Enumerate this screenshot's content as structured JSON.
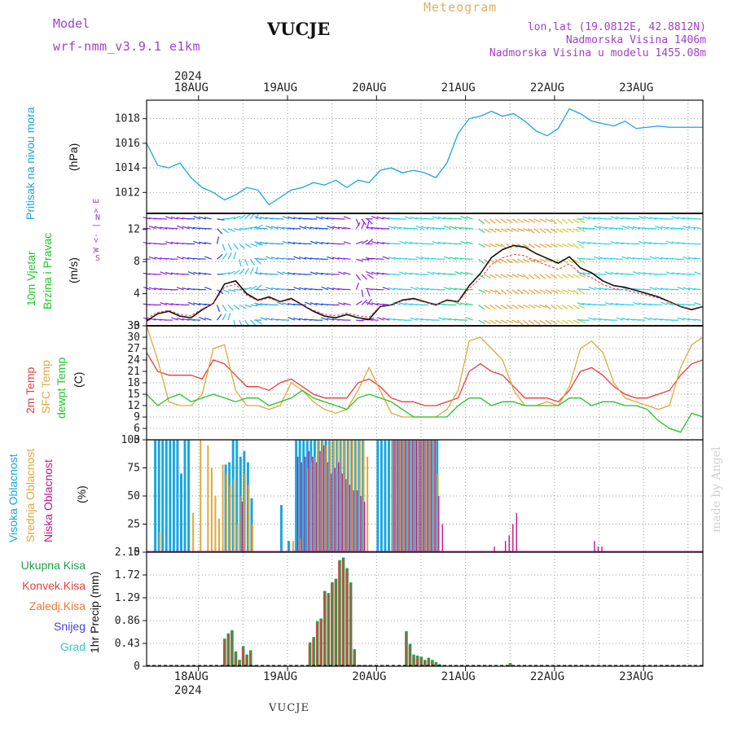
{
  "header": {
    "model_label": "Model",
    "model_name": "wrf-nmm_v3.9.1 e1km",
    "station": "VUCJE",
    "meteogram_label": "Meteogram",
    "lonlat": "lon,lat (19.0812E, 42.8812N)",
    "altitude": "Nadmorska Visina 1406m",
    "model_altitude": "Nadmorska Visina u modelu 1455.08m",
    "watermark": "made by Angel",
    "footer_station": "VUCJE"
  },
  "colors": {
    "pressure": "#1aa6e0",
    "wind_speed": "#22c52b",
    "temp2m": "#e83c3c",
    "sfc_temp": "#e0a83a",
    "dewpt": "#22c52b",
    "high_cloud": "#1aa6e0",
    "mid_cloud": "#e0a83a",
    "low_cloud": "#c8148c",
    "total_precip": "#22a04a",
    "conv_precip": "#e83c3c",
    "frz_precip": "#f07830",
    "snow": "#4040e0",
    "graupel": "#30c8c8",
    "header_purple": "#a040c8",
    "meteogram_color": "#e0b060"
  },
  "time_axis": {
    "year": "2024",
    "days": [
      "18AUG",
      "19AUG",
      "20AUG",
      "21AUG",
      "22AUG",
      "23AUG"
    ],
    "start_hour": 0,
    "end_hour": 150,
    "day_start_hours": [
      14,
      38,
      62,
      86,
      110,
      134
    ]
  },
  "chart_data": [
    {
      "type": "line",
      "panel": "pressure",
      "ylabel_main": "Pritisak na nivou mora",
      "ylabel_unit": "(hPa)",
      "ylim": [
        1010.3,
        1019.5
      ],
      "yticks": [
        "1012",
        "1014",
        "1016",
        "1018"
      ],
      "grid": true,
      "x": [
        0,
        3,
        6,
        9,
        12,
        15,
        18,
        21,
        24,
        27,
        30,
        33,
        36,
        39,
        42,
        45,
        48,
        51,
        54,
        57,
        60,
        63,
        66,
        69,
        72,
        75,
        78,
        81,
        84,
        87,
        90,
        93,
        96,
        99,
        102,
        105,
        108,
        111,
        114,
        117,
        120,
        123,
        126,
        129,
        132,
        135,
        138,
        141,
        144,
        147,
        150
      ],
      "values": [
        1016.0,
        1014.2,
        1014.0,
        1014.4,
        1013.2,
        1012.4,
        1012.0,
        1011.4,
        1011.8,
        1012.4,
        1012.2,
        1011.0,
        1011.6,
        1012.2,
        1012.4,
        1012.8,
        1012.6,
        1013.0,
        1012.4,
        1013.0,
        1012.8,
        1013.8,
        1014.0,
        1013.6,
        1013.8,
        1013.6,
        1013.2,
        1014.4,
        1016.8,
        1018.0,
        1018.2,
        1018.6,
        1018.2,
        1018.4,
        1017.8,
        1017.0,
        1016.6,
        1017.2,
        1018.8,
        1018.4,
        1017.8,
        1017.6,
        1017.4,
        1017.8,
        1017.2,
        1017.3,
        1017.4,
        1017.3,
        1017.3,
        1017.3,
        1017.3
      ]
    },
    {
      "type": "line",
      "panel": "wind",
      "ylabel_main": "10m Vjetar",
      "ylabel_sub": "Brzina i Pravac",
      "ylabel_unit": "(m/s)",
      "compass": "W <- | -> E",
      "compass_n": "N",
      "compass_s": "S",
      "ylim": [
        0,
        14
      ],
      "yticks": [
        "0",
        "4",
        "8",
        "12"
      ],
      "grid": true,
      "x": [
        0,
        3,
        6,
        9,
        12,
        15,
        18,
        21,
        24,
        27,
        30,
        33,
        36,
        39,
        42,
        45,
        48,
        51,
        54,
        57,
        60,
        63,
        66,
        69,
        72,
        75,
        78,
        81,
        84,
        87,
        90,
        93,
        96,
        99,
        102,
        105,
        108,
        111,
        114,
        117,
        120,
        123,
        126,
        129,
        132,
        135,
        138,
        141,
        144,
        147,
        150
      ],
      "values": [
        0.6,
        1.5,
        1.8,
        1.2,
        1.0,
        2.0,
        2.8,
        5.2,
        5.6,
        4.0,
        3.2,
        3.6,
        3.0,
        3.4,
        2.6,
        1.8,
        1.2,
        1.0,
        1.4,
        1.0,
        0.8,
        2.4,
        2.6,
        3.2,
        3.4,
        3.0,
        2.6,
        3.2,
        3.0,
        5.0,
        6.5,
        8.5,
        9.5,
        10.0,
        9.8,
        9.0,
        8.4,
        7.8,
        8.6,
        7.2,
        6.6,
        5.6,
        5.0,
        4.8,
        4.4,
        4.0,
        3.6,
        3.0,
        2.4,
        2.0,
        2.4
      ]
    },
    {
      "type": "line",
      "panel": "temperature",
      "ylabel_main": "2m Temp",
      "ylabel_sub": "SFC Temp",
      "ylabel_sub2": "dewpt Temp",
      "ylabel_unit": "(C)",
      "ylim": [
        3,
        33
      ],
      "yticks": [
        "3",
        "6",
        "9",
        "12",
        "15",
        "18",
        "21",
        "24",
        "27",
        "30",
        "33"
      ],
      "grid": true,
      "x": [
        0,
        3,
        6,
        9,
        12,
        15,
        18,
        21,
        24,
        27,
        30,
        33,
        36,
        39,
        42,
        45,
        48,
        51,
        54,
        57,
        60,
        63,
        66,
        69,
        72,
        75,
        78,
        81,
        84,
        87,
        90,
        93,
        96,
        99,
        102,
        105,
        108,
        111,
        114,
        117,
        120,
        123,
        126,
        129,
        132,
        135,
        138,
        141,
        144,
        147,
        150
      ],
      "series": [
        {
          "name": "2m Temp",
          "values": [
            26,
            21,
            20,
            20,
            20,
            19,
            24,
            23,
            20,
            17,
            17,
            16,
            18,
            19,
            17,
            15,
            14,
            14,
            14,
            18,
            19,
            17,
            14,
            13,
            13,
            12,
            12,
            13,
            14,
            21,
            23,
            21,
            20,
            17,
            14,
            14,
            14,
            13,
            16,
            21,
            22,
            20,
            17,
            15,
            14,
            14,
            15,
            16,
            20,
            23,
            24
          ]
        },
        {
          "name": "SFC Temp",
          "values": [
            33,
            24,
            13,
            12,
            12,
            15,
            27,
            28,
            16,
            12,
            12,
            11,
            12,
            18,
            16,
            13,
            11,
            10,
            11,
            16,
            22,
            16,
            10,
            9,
            9,
            9,
            9,
            11,
            16,
            29,
            30,
            27,
            24,
            16,
            12,
            12,
            13,
            12,
            17,
            27,
            29,
            26,
            18,
            14,
            13,
            12,
            11,
            12,
            22,
            28,
            30
          ]
        },
        {
          "name": "dewpt Temp",
          "values": [
            15,
            12,
            14,
            15,
            13,
            14,
            15,
            14,
            13,
            14,
            14,
            12,
            13,
            14,
            16,
            14,
            13,
            12,
            11,
            14,
            15,
            14,
            13,
            11,
            9,
            9,
            9,
            9,
            12,
            14,
            14,
            12,
            13,
            13,
            12,
            12,
            12,
            12,
            14,
            14,
            12,
            13,
            13,
            12,
            12,
            11,
            8,
            6,
            5,
            10,
            9
          ]
        }
      ]
    },
    {
      "type": "bar",
      "panel": "clouds",
      "ylabel_main": "Visoka Oblacnost",
      "ylabel_sub": "Srednja Oblacnost",
      "ylabel_sub2": "Niska Oblacnost",
      "ylabel_unit": "(%)",
      "ylim": [
        0,
        100
      ],
      "yticks": [
        "0",
        "25",
        "50",
        "75",
        "100"
      ],
      "grid": true,
      "series": [
        {
          "name": "Visoka Oblacnost",
          "x": [
            2,
            3,
            4,
            5,
            6,
            7,
            8,
            9,
            10,
            11,
            21,
            22,
            23,
            24,
            25,
            26,
            27,
            28,
            36,
            38,
            40,
            41,
            42,
            43,
            44,
            45,
            46,
            47,
            48,
            49,
            50,
            51,
            52,
            53,
            54,
            55,
            56,
            57,
            58,
            62,
            63,
            64,
            65,
            66,
            67,
            68,
            69,
            70,
            71,
            72,
            73,
            74,
            75,
            76,
            77,
            78
          ],
          "values": [
            100,
            100,
            100,
            100,
            100,
            100,
            100,
            70,
            100,
            100,
            78,
            80,
            100,
            100,
            85,
            90,
            80,
            48,
            42,
            10,
            100,
            100,
            100,
            100,
            100,
            100,
            100,
            100,
            100,
            100,
            100,
            100,
            100,
            100,
            100,
            100,
            100,
            100,
            100,
            100,
            100,
            100,
            100,
            100,
            100,
            100,
            100,
            100,
            100,
            100,
            100,
            100,
            100,
            100,
            100,
            100
          ]
        },
        {
          "name": "Srednja Oblacnost",
          "x": [
            3,
            12,
            14,
            16,
            17,
            18,
            19,
            20,
            21,
            22,
            23,
            24,
            25,
            26,
            27,
            28,
            39,
            41,
            43,
            44,
            45,
            46,
            47,
            48,
            49,
            50,
            51,
            52,
            53,
            54,
            55,
            56,
            57,
            58,
            59,
            66,
            67,
            68,
            69,
            70,
            71,
            72,
            73,
            74,
            75,
            76,
            77,
            78
          ],
          "values": [
            18,
            35,
            100,
            95,
            75,
            50,
            30,
            78,
            70,
            60,
            65,
            25,
            50,
            70,
            60,
            25,
            10,
            12,
            75,
            80,
            85,
            100,
            100,
            95,
            100,
            100,
            100,
            100,
            100,
            100,
            100,
            100,
            100,
            100,
            85,
            100,
            100,
            100,
            100,
            100,
            100,
            100,
            100,
            100,
            100,
            100,
            100,
            70
          ]
        },
        {
          "name": "Niska Oblacnost",
          "x": [
            25,
            40,
            41,
            42,
            43,
            44,
            45,
            46,
            47,
            48,
            49,
            50,
            51,
            52,
            53,
            54,
            55,
            56,
            57,
            58,
            66,
            67,
            68,
            69,
            70,
            71,
            72,
            73,
            74,
            75,
            76,
            77,
            78,
            79,
            93,
            96,
            97,
            98,
            99,
            120,
            121,
            122
          ],
          "values": [
            45,
            85,
            80,
            85,
            90,
            85,
            80,
            90,
            95,
            80,
            70,
            75,
            80,
            70,
            65,
            60,
            55,
            55,
            50,
            45,
            100,
            100,
            100,
            100,
            100,
            100,
            100,
            100,
            100,
            100,
            100,
            100,
            50,
            25,
            5,
            10,
            15,
            25,
            35,
            10,
            5,
            5
          ]
        }
      ]
    },
    {
      "type": "bar",
      "panel": "precipitation",
      "ylabel_main": "1hr Precip (mm)",
      "legend": [
        "Ukupna Kisa",
        "Konvek.Kisa",
        "Zaledj.Kisa",
        "Snijeg",
        "Grad"
      ],
      "ylim": [
        0,
        2.15
      ],
      "yticks": [
        "0",
        "0.43",
        "0.86",
        "1.29",
        "1.72",
        "2.15"
      ],
      "grid": true,
      "series": [
        {
          "name": "Ukupna Kisa",
          "x": [
            20,
            21,
            22,
            23,
            24,
            25,
            26,
            27,
            28,
            29,
            44,
            45,
            46,
            47,
            48,
            49,
            50,
            51,
            52,
            53,
            54,
            55,
            56,
            57,
            58,
            59,
            60,
            70,
            71,
            72,
            73,
            74,
            75,
            76,
            77,
            78,
            79,
            80,
            98
          ],
          "values": [
            0.02,
            0.52,
            0.62,
            0.68,
            0.28,
            0.12,
            0.38,
            0.22,
            0.3,
            0.02,
            0.45,
            0.55,
            0.85,
            0.9,
            1.42,
            1.38,
            1.58,
            1.65,
            2.0,
            2.05,
            1.85,
            1.58,
            0.32,
            0.02,
            0.02,
            0.02,
            0.02,
            0.66,
            0.42,
            0.22,
            0.2,
            0.18,
            0.12,
            0.16,
            0.12,
            0.08,
            0.04,
            0.02,
            0.06
          ]
        }
      ]
    }
  ]
}
